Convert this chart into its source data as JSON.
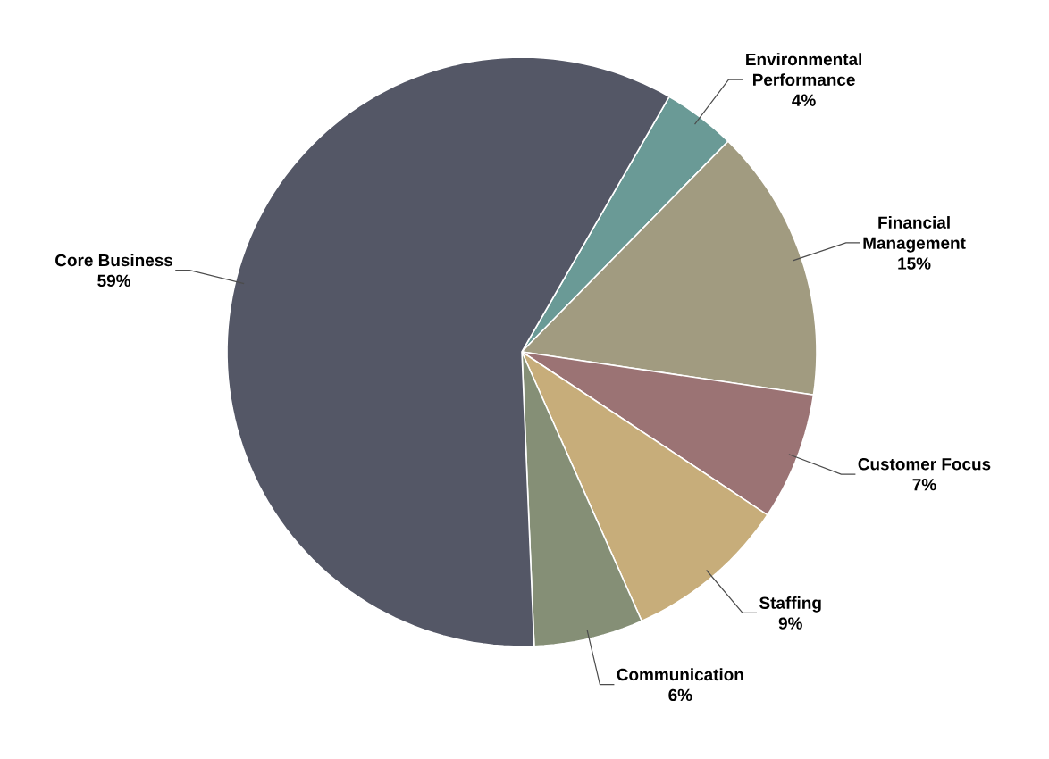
{
  "chart_data": {
    "type": "pie",
    "categories": [
      "Environmental Performance",
      "Financial Management",
      "Customer Focus",
      "Staffing",
      "Communication",
      "Core Business"
    ],
    "values": [
      4,
      15,
      7,
      9,
      6,
      59
    ],
    "value_labels": [
      "4%",
      "15%",
      "7%",
      "9%",
      "6%",
      "59%"
    ],
    "colors": [
      "#6a9a96",
      "#a19b80",
      "#9b7374",
      "#c7ad7a",
      "#858f76",
      "#545766"
    ]
  }
}
